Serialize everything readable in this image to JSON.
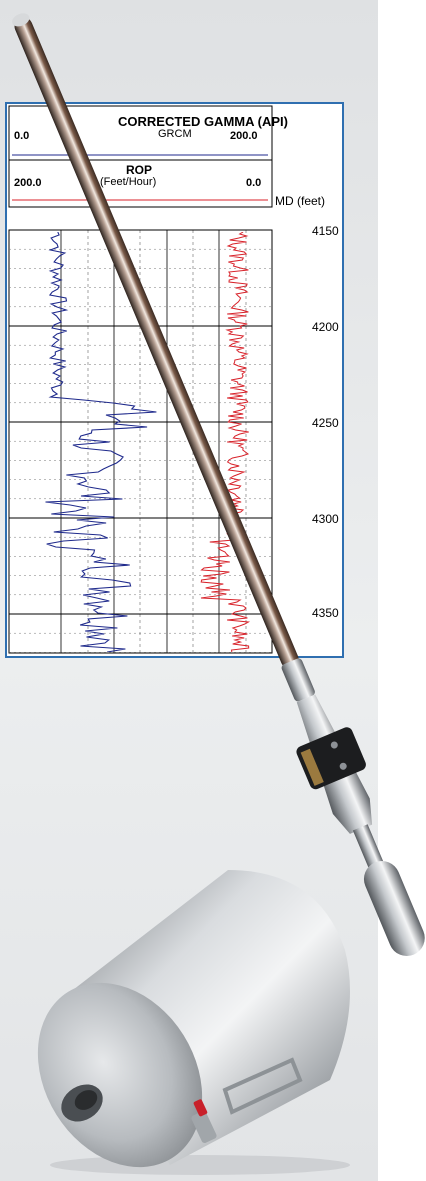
{
  "log": {
    "track1": {
      "title": "CORRECTED GAMMA (API)",
      "mnemonic": "GRCM",
      "scale_left": "0.0",
      "scale_right": "200.0",
      "curve_color": "#1f2a8c"
    },
    "track2": {
      "title": "ROP",
      "unit": "(Feet/Hour)",
      "scale_left": "200.0",
      "scale_right": "0.0",
      "curve_color": "#d8222a"
    },
    "depth_label": "MD (feet)",
    "depths": [
      "4150",
      "4200",
      "4250",
      "4300",
      "4350"
    ],
    "frame_color": "#2f6fb0"
  },
  "background": {
    "panel_color": "#e6e8ea"
  },
  "objects": [
    "logging-tool-probe",
    "shield-canister"
  ]
}
